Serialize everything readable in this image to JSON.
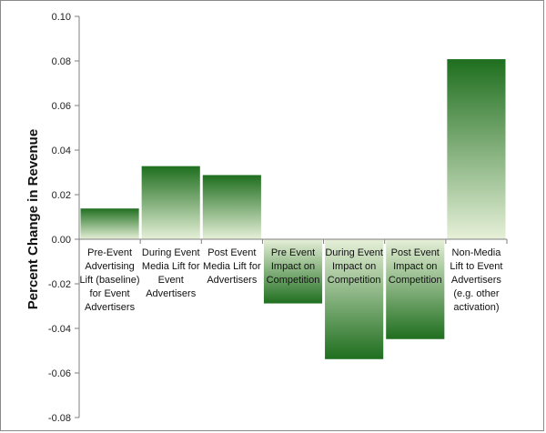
{
  "chart_data": {
    "type": "bar",
    "title": "",
    "xlabel": "",
    "ylabel": "Percent Change in Revenue",
    "ylim": [
      -0.08,
      0.1
    ],
    "yticks": [
      "0.10",
      "0.08",
      "0.06",
      "0.04",
      "0.02",
      "0.00",
      "-0.02",
      "-0.04",
      "-0.06",
      "-0.08"
    ],
    "grid": false,
    "categories": [
      [
        "Pre-Event",
        "Advertising",
        "Lift (baseline)",
        "for Event",
        "Advertisers"
      ],
      [
        "During Event",
        "Media Lift for",
        "Event",
        "Advertisers"
      ],
      [
        "Post Event",
        "Media Lift for",
        "Advertisers"
      ],
      [
        "Pre Event",
        "Impact on",
        "Competition"
      ],
      [
        "During Event",
        "Impact on",
        "Competition"
      ],
      [
        "Post Event",
        "Impact on",
        "Competition"
      ],
      [
        "Non-Media",
        "Lift to Event",
        "Advertisers",
        "(e.g. other",
        "activation)"
      ]
    ],
    "values": [
      0.014,
      0.033,
      0.029,
      -0.029,
      -0.054,
      -0.045,
      0.081
    ],
    "colors": {
      "bar_dark": "#1e6e1e",
      "bar_light": "#e6f0d8",
      "axis": "#7f7f7f"
    }
  }
}
